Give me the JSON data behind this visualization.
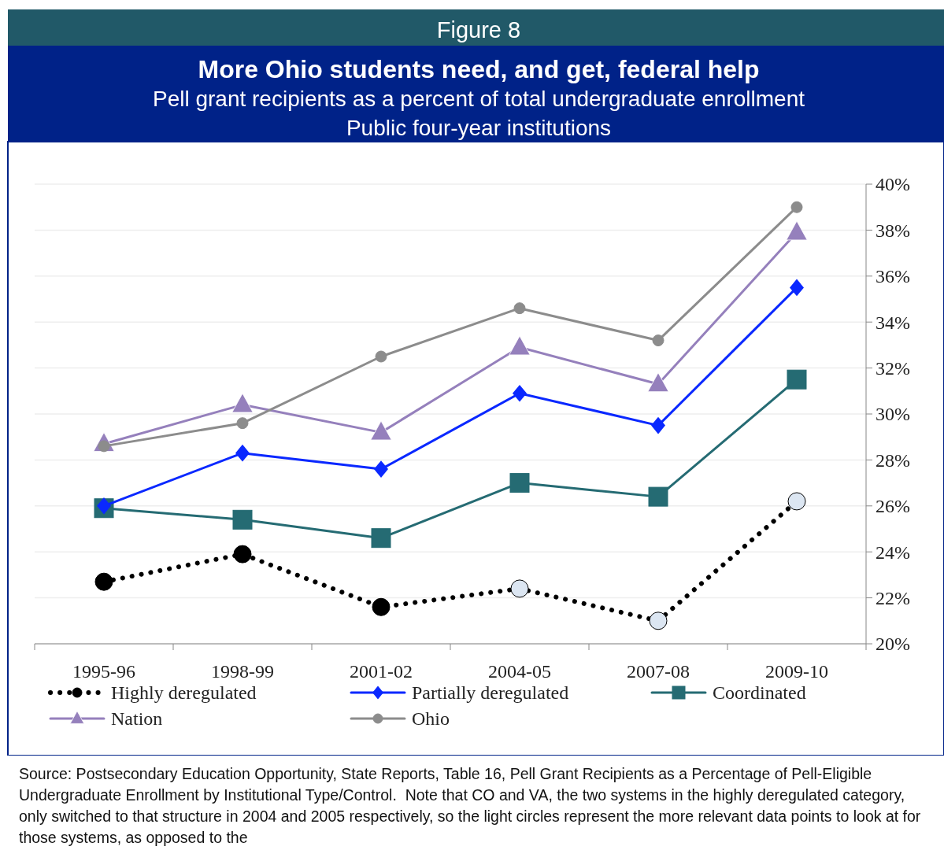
{
  "chart_data": {
    "type": "line",
    "title": "More Ohio students need, and get, federal help",
    "subtitle": "Pell grant recipients as a percent of total undergraduate enrollment\nPublic four-year institutions",
    "annotations": [
      "Figure 8",
      "Source: Postsecondary Education Opportunity, State Reports, Table 16, Pell Grant Recipients as a Percentage of Pell-Eligible Undergraduate Enrollment by Institutional Type/Control.  Note that CO and VA, the two systems in the highly deregulated category, only switched to that structure in 2004 and 2005 respectively, so the light circles represent the more relevant data points to look at for those systems, as opposed to the"
    ],
    "categories": [
      "1995-96",
      "1998-99",
      "2001-02",
      "2004-05",
      "2007-08",
      "2009-10"
    ],
    "ylim": [
      20,
      40
    ],
    "yticks": [
      {
        "value": 20,
        "label": "20%"
      },
      {
        "value": 22,
        "label": "22%"
      },
      {
        "value": 24,
        "label": "24%"
      },
      {
        "value": 26,
        "label": "26%"
      },
      {
        "value": 28,
        "label": "28%"
      },
      {
        "value": 30,
        "label": "30%"
      },
      {
        "value": 32,
        "label": "32%"
      },
      {
        "value": 34,
        "label": "34%"
      },
      {
        "value": 36,
        "label": "36%"
      },
      {
        "value": 38,
        "label": "38%"
      },
      {
        "value": 40,
        "label": "40%"
      }
    ],
    "grid": "y",
    "legend": "bottom",
    "series": [
      {
        "name": "Highly deregulated",
        "color": "#000000",
        "marker": "circle",
        "line_style": "dotted",
        "colors": [
          "#000000",
          "#000000",
          "#000000",
          "#dce6f2",
          "#dce6f2",
          "#dce6f2"
        ],
        "values": [
          22.7,
          23.9,
          21.6,
          22.4,
          21.0,
          26.2
        ]
      },
      {
        "name": "Partially deregulated",
        "color": "#0a28ff",
        "marker": "diamond",
        "line_style": "solid",
        "values": [
          26.0,
          28.3,
          27.6,
          30.9,
          29.5,
          35.5
        ]
      },
      {
        "name": "Coordinated",
        "color": "#256b73",
        "marker": "square",
        "line_style": "solid",
        "values": [
          25.9,
          25.4,
          24.6,
          27.0,
          26.4,
          31.5
        ]
      },
      {
        "name": "Nation",
        "color": "#9580bc",
        "marker": "triangle",
        "line_style": "solid",
        "values": [
          28.7,
          30.4,
          29.2,
          32.9,
          31.3,
          37.9
        ]
      },
      {
        "name": "Ohio",
        "color": "#8c8c8c",
        "marker": "circle",
        "line_style": "solid",
        "values": [
          28.6,
          29.6,
          32.5,
          34.6,
          33.2,
          39.0
        ]
      }
    ]
  }
}
